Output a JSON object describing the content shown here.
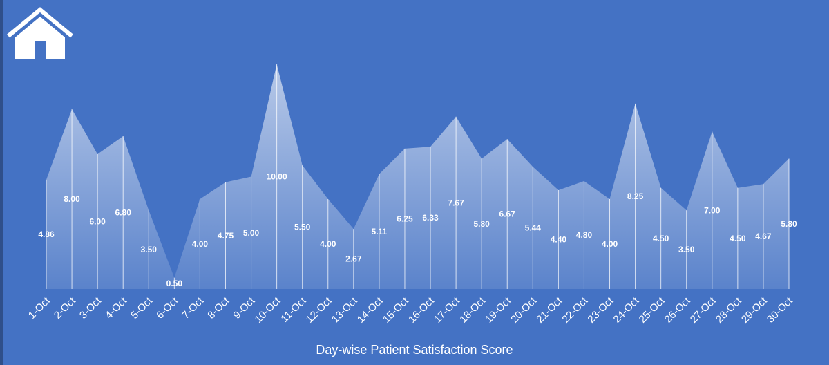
{
  "home": {
    "icon": "home-icon"
  },
  "chart_data": {
    "type": "area",
    "title": "Day-wise Patient Satisfaction Score",
    "categories": [
      "1-Oct",
      "2-Oct",
      "3-Oct",
      "4-Oct",
      "5-Oct",
      "6-Oct",
      "7-Oct",
      "8-Oct",
      "9-Oct",
      "10-Oct",
      "11-Oct",
      "12-Oct",
      "13-Oct",
      "14-Oct",
      "15-Oct",
      "16-Oct",
      "17-Oct",
      "18-Oct",
      "19-Oct",
      "20-Oct",
      "21-Oct",
      "22-Oct",
      "23-Oct",
      "24-Oct",
      "25-Oct",
      "26-Oct",
      "27-Oct",
      "28-Oct",
      "29-Oct",
      "30-Oct"
    ],
    "values": [
      4.86,
      8.0,
      6.0,
      6.8,
      3.5,
      0.5,
      4.0,
      4.75,
      5.0,
      10.0,
      5.5,
      4.0,
      2.67,
      5.11,
      6.25,
      6.33,
      7.67,
      5.8,
      6.67,
      5.44,
      4.4,
      4.8,
      4.0,
      8.25,
      4.5,
      3.5,
      7.0,
      4.5,
      4.67,
      5.8
    ],
    "data_labels": [
      "4.86",
      "8.00",
      "6.00",
      "6.80",
      "3.50",
      "0.50",
      "4.00",
      "4.75",
      "5.00",
      "10.00",
      "5.50",
      "4.00",
      "2.67",
      "5.11",
      "6.25",
      "6.33",
      "7.67",
      "5.80",
      "6.67",
      "5.44",
      "4.40",
      "4.80",
      "4.00",
      "8.25",
      "4.50",
      "3.50",
      "7.00",
      "4.50",
      "4.67",
      "5.80"
    ],
    "ylim": [
      0,
      10
    ],
    "grid": false,
    "legend": "none",
    "colors": {
      "background": "#4472c4",
      "fill_top": "#ffffff",
      "line": "#ffffff",
      "label": "#ffffff"
    }
  }
}
